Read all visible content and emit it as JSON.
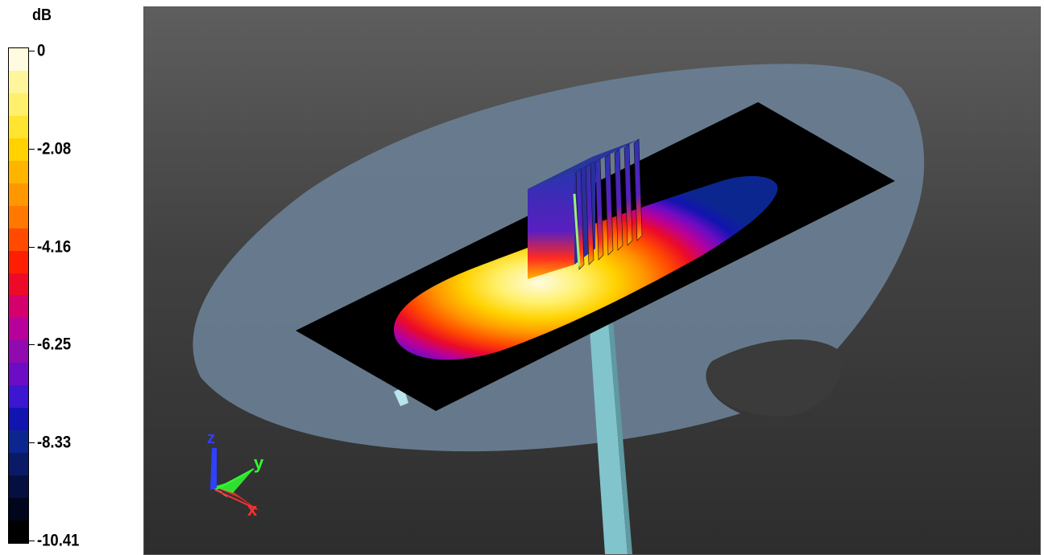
{
  "legend": {
    "unit": "dB",
    "ticks": [
      "0",
      "-2.08",
      "-4.16",
      "-6.25",
      "-8.33",
      "-10.41"
    ],
    "colors": [
      "#fffbe0",
      "#fff59a",
      "#fff06b",
      "#ffe430",
      "#ffd200",
      "#ffb400",
      "#ff9800",
      "#ff7800",
      "#ff4a00",
      "#ff1e00",
      "#ec0a28",
      "#d4006e",
      "#b8009a",
      "#900ab0",
      "#6c0cc4",
      "#3c16d0",
      "#1214b0",
      "#0c2690",
      "#0a1a66",
      "#061040",
      "#02061c",
      "#000000"
    ]
  },
  "axes": {
    "labels": [
      "z",
      "y",
      "x"
    ],
    "colors": {
      "x": "#ff3030",
      "y": "#30ff30",
      "z": "#3040ff"
    }
  },
  "scene": {
    "ground_color": "#6a7f94",
    "panel_color": "#000000",
    "stand_color": "#82c4cc",
    "emitter_color": "#2a34b0"
  }
}
